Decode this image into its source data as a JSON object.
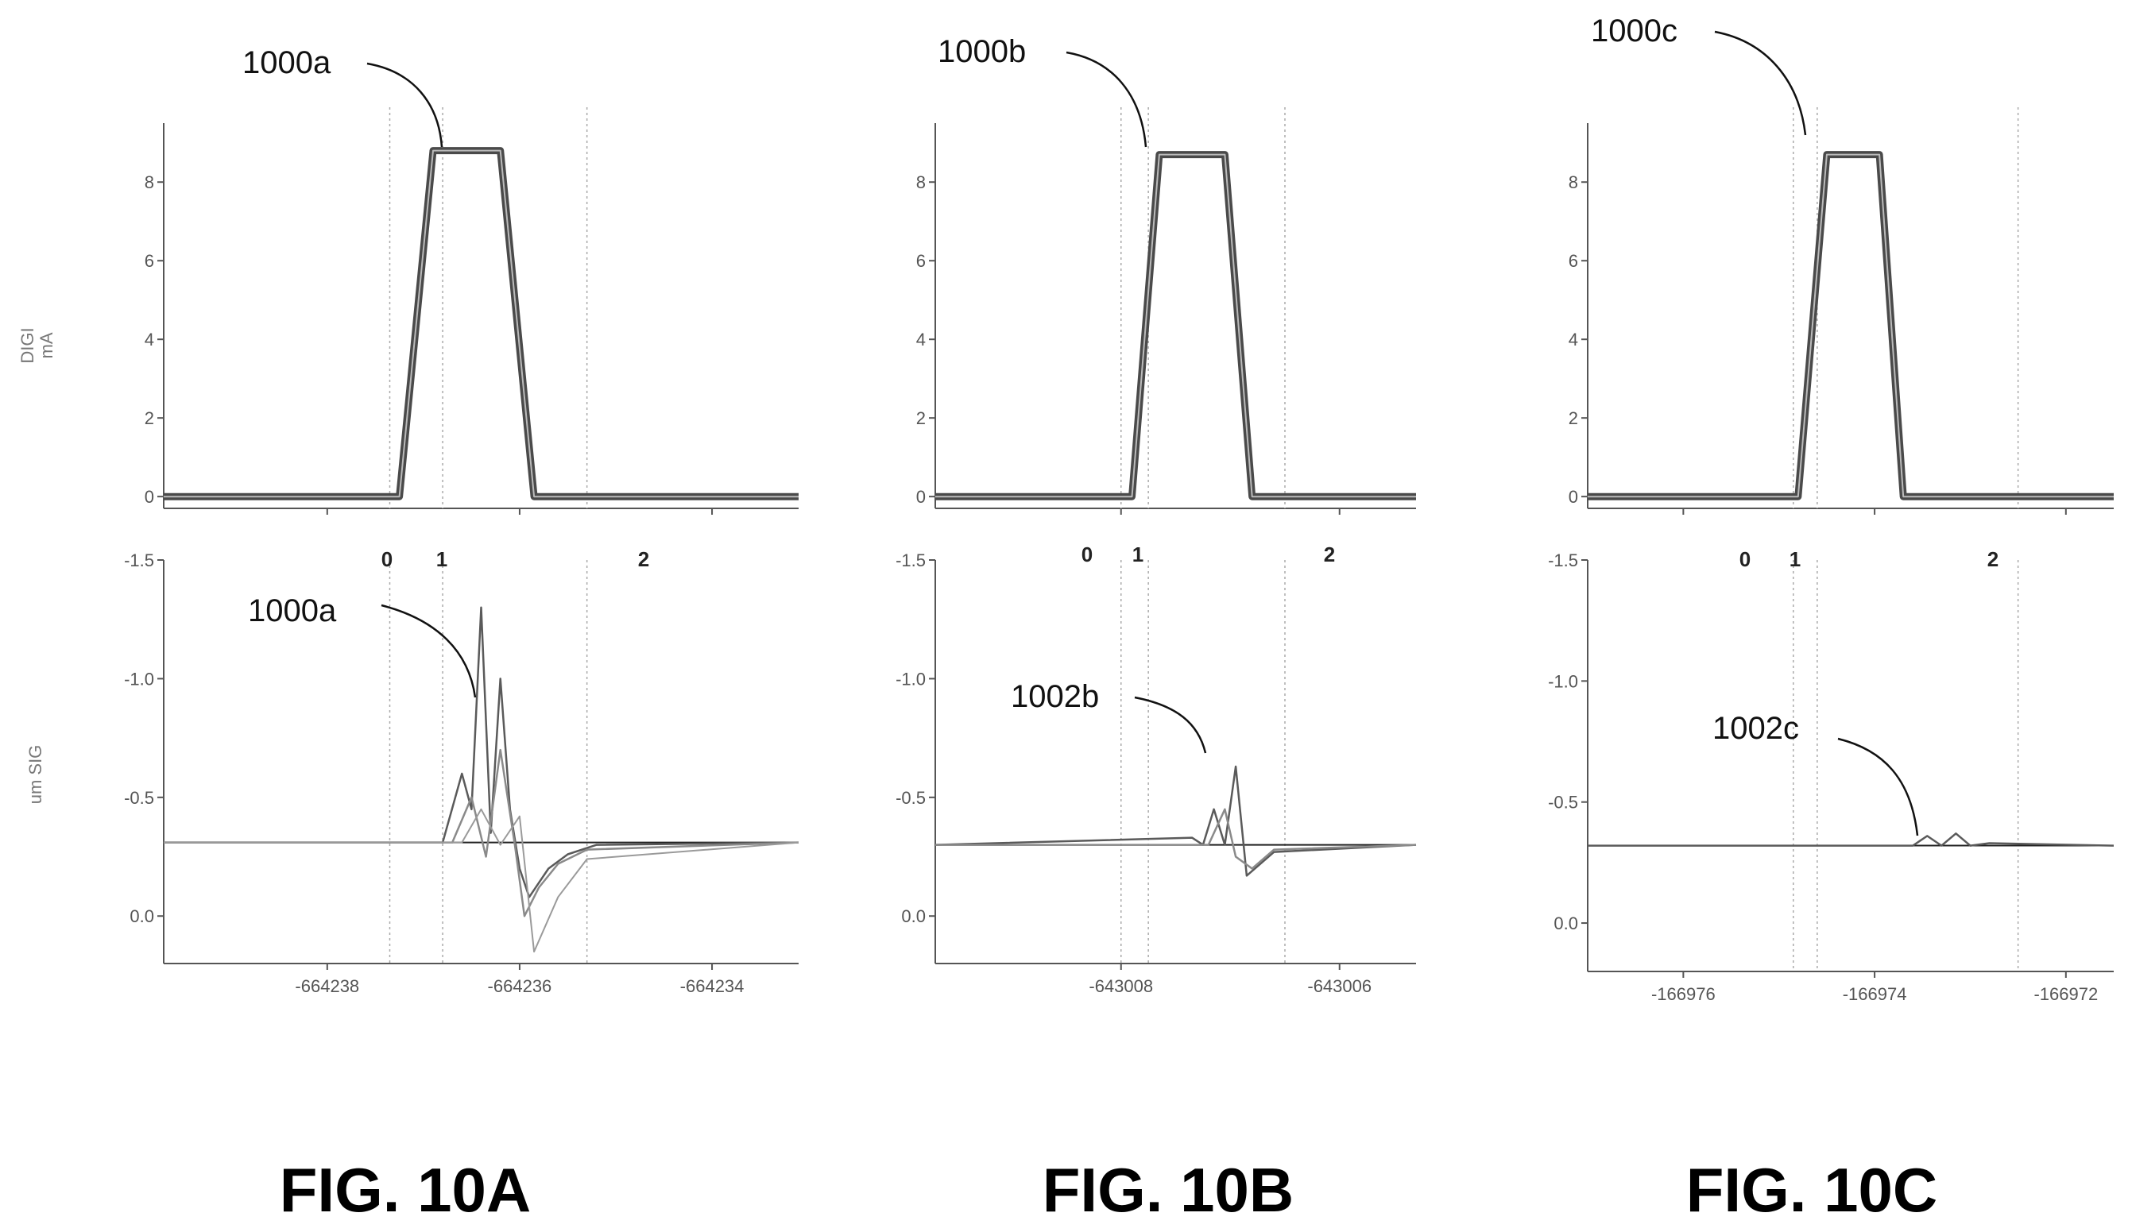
{
  "figures": [
    {
      "fig_label": "FIG. 10A",
      "cursors": [
        "0",
        "1",
        "2"
      ],
      "top_callout": "1000a",
      "bottom_callout": "1000a",
      "top_ylabel": [
        "DIGI",
        "mA"
      ],
      "bottom_ylabel": "um SIG"
    },
    {
      "fig_label": "FIG. 10B",
      "cursors": [
        "0",
        "1",
        "2"
      ],
      "top_callout": "1000b",
      "bottom_callout": "1002b",
      "top_ylabel": [],
      "bottom_ylabel": ""
    },
    {
      "fig_label": "FIG. 10C",
      "cursors": [
        "0",
        "1",
        "2"
      ],
      "top_callout": "1000c",
      "bottom_callout": "1002c",
      "top_ylabel": [],
      "bottom_ylabel": ""
    }
  ],
  "chart_data": [
    {
      "type": "line",
      "ylabel": "DIGI mA",
      "xlim": [
        -664239.7,
        -664233.1
      ],
      "ylim": [
        -0.3,
        9.5
      ],
      "xticks": [
        -664238,
        -664236,
        -664234
      ],
      "xtick_labels": [
        "-664238",
        "-664236",
        "-664234"
      ],
      "yticks": [
        8,
        6,
        4,
        2,
        0
      ],
      "ytick_labels": [
        "8",
        "6",
        "4",
        "2",
        "0"
      ],
      "cursor_x": [
        -664237.35,
        -664236.8,
        -664235.3
      ],
      "series": [
        {
          "x": [
            -664239.7,
            -664237.25,
            -664236.9,
            -664236.2,
            -664235.85,
            -664233.1
          ],
          "y": [
            0,
            0,
            8.8,
            8.8,
            0,
            0
          ]
        }
      ]
    },
    {
      "type": "line",
      "ylabel": "um SIG",
      "y_inverted": true,
      "xlim": [
        -664239.7,
        -664233.1
      ],
      "ylim": [
        0.2,
        -1.5
      ],
      "xticks": [
        -664238,
        -664236,
        -664234
      ],
      "xtick_labels": [
        "-664238",
        "-664236",
        "-664234"
      ],
      "yticks": [
        -1.5,
        -1.0,
        -0.5,
        0.0
      ],
      "ytick_labels": [
        "-1.5",
        "-1.0",
        "-0.5",
        "0.0"
      ],
      "cursor_x": [
        -664237.35,
        -664236.8,
        -664235.3
      ],
      "series": [
        {
          "x": [
            -664239.7,
            -664236.8,
            -664236.6,
            -664236.5,
            -664236.4,
            -664236.3,
            -664236.2,
            -664236.1,
            -664236.0,
            -664235.9,
            -664235.7,
            -664235.5,
            -664235.2,
            -664233.1
          ],
          "y": [
            -0.31,
            -0.31,
            -0.6,
            -0.45,
            -1.3,
            -0.35,
            -1.0,
            -0.45,
            -0.2,
            -0.08,
            -0.2,
            -0.26,
            -0.3,
            -0.31
          ]
        },
        {
          "x": [
            -664239.7,
            -664236.7,
            -664236.5,
            -664236.35,
            -664236.2,
            -664236.05,
            -664235.95,
            -664235.8,
            -664235.6,
            -664235.3,
            -664233.1
          ],
          "y": [
            -0.31,
            -0.31,
            -0.5,
            -0.25,
            -0.7,
            -0.3,
            0.0,
            -0.12,
            -0.22,
            -0.28,
            -0.31
          ]
        },
        {
          "x": [
            -664239.7,
            -664236.6,
            -664236.4,
            -664236.2,
            -664236.0,
            -664235.85,
            -664235.6,
            -664235.3,
            -664233.1
          ],
          "y": [
            -0.31,
            -0.31,
            -0.45,
            -0.3,
            -0.42,
            0.15,
            -0.08,
            -0.24,
            -0.31
          ]
        }
      ]
    },
    {
      "type": "line",
      "xlim": [
        -643009.7,
        -643005.3
      ],
      "ylim": [
        -0.3,
        9.5
      ],
      "xticks": [
        -643008,
        -643006
      ],
      "xtick_labels": [
        "-643008",
        "-643006"
      ],
      "yticks": [
        8,
        6,
        4,
        2,
        0
      ],
      "ytick_labels": [
        "8",
        "6",
        "4",
        "2",
        "0"
      ],
      "cursor_x": [
        -643008.0,
        -643007.75,
        -643006.5
      ],
      "series": [
        {
          "x": [
            -643009.7,
            -643007.9,
            -643007.65,
            -643007.05,
            -643006.8,
            -643005.3
          ],
          "y": [
            0,
            0,
            8.7,
            8.7,
            0,
            0
          ]
        }
      ]
    },
    {
      "type": "line",
      "y_inverted": true,
      "xlim": [
        -643009.7,
        -643005.3
      ],
      "ylim": [
        0.2,
        -1.5
      ],
      "xticks": [
        -643008,
        -643006
      ],
      "xtick_labels": [
        "-643008",
        "-643006"
      ],
      "yticks": [
        -1.5,
        -1.0,
        -0.5,
        0.0
      ],
      "ytick_labels": [
        "-1.5",
        "-1.0",
        "-0.5",
        "0.0"
      ],
      "cursor_x": [
        -643008.0,
        -643007.75,
        -643006.5
      ],
      "series": [
        {
          "x": [
            -643009.7,
            -643007.35,
            -643007.25,
            -643007.15,
            -643007.05,
            -643006.95,
            -643006.85,
            -643006.6,
            -643005.3
          ],
          "y": [
            -0.3,
            -0.33,
            -0.3,
            -0.45,
            -0.3,
            -0.63,
            -0.17,
            -0.27,
            -0.3
          ]
        },
        {
          "x": [
            -643009.7,
            -643007.2,
            -643007.05,
            -643006.95,
            -643006.8,
            -643006.6,
            -643005.3
          ],
          "y": [
            -0.3,
            -0.3,
            -0.45,
            -0.25,
            -0.2,
            -0.28,
            -0.3
          ]
        }
      ]
    },
    {
      "type": "line",
      "xlim": [
        -166977.0,
        -166971.5
      ],
      "ylim": [
        -0.3,
        9.5
      ],
      "xticks": [
        -166976,
        -166974,
        -166972
      ],
      "xtick_labels": [
        "-166976",
        "-166974",
        "-166972"
      ],
      "yticks": [
        8,
        6,
        4,
        2,
        0
      ],
      "ytick_labels": [
        "8",
        "6",
        "4",
        "2",
        "0"
      ],
      "cursor_x": [
        -166974.85,
        -166974.6,
        -166972.5
      ],
      "series": [
        {
          "x": [
            -166977.0,
            -166974.8,
            -166974.5,
            -166973.95,
            -166973.7,
            -166971.5
          ],
          "y": [
            0,
            0,
            8.7,
            8.7,
            0,
            0
          ]
        }
      ]
    },
    {
      "type": "line",
      "y_inverted": true,
      "xlim": [
        -166977.0,
        -166971.5
      ],
      "ylim": [
        0.2,
        -1.5
      ],
      "xticks": [
        -166976,
        -166974,
        -166972
      ],
      "xtick_labels": [
        "-166976",
        "-166974",
        "-166972"
      ],
      "yticks": [
        -1.5,
        -1.0,
        -0.5,
        0.0
      ],
      "ytick_labels": [
        "-1.5",
        "-1.0",
        "-0.5",
        "0.0"
      ],
      "cursor_x": [
        -166974.85,
        -166974.6,
        -166972.5
      ],
      "series": [
        {
          "x": [
            -166977.0,
            -166973.6,
            -166973.45,
            -166973.3,
            -166973.15,
            -166973.0,
            -166972.8,
            -166971.5
          ],
          "y": [
            -0.32,
            -0.32,
            -0.36,
            -0.32,
            -0.37,
            -0.32,
            -0.33,
            -0.32
          ]
        }
      ]
    }
  ]
}
